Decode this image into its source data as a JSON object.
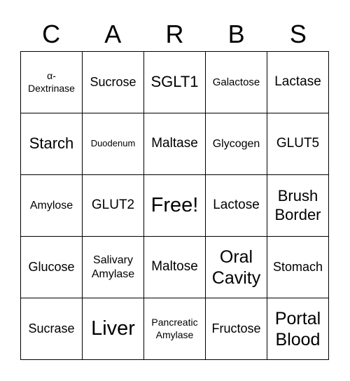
{
  "header": {
    "letters": [
      "C",
      "A",
      "R",
      "B",
      "S"
    ]
  },
  "board": {
    "cells": [
      "α-Dextrinase",
      "Sucrose",
      "SGLT1",
      "Galactose",
      "Lactase",
      "Starch",
      "Duodenum",
      "Maltase",
      "Glycogen",
      "GLUT5",
      "Amylose",
      "GLUT2",
      "Free!",
      "Lactose",
      "Brush Border",
      "Glucose",
      "Salivary Amylase",
      "Maltose",
      "Oral Cavity",
      "Stomach",
      "Sucrase",
      "Liver",
      "Pancreatic Amylase",
      "Fructose",
      "Portal Blood"
    ]
  }
}
